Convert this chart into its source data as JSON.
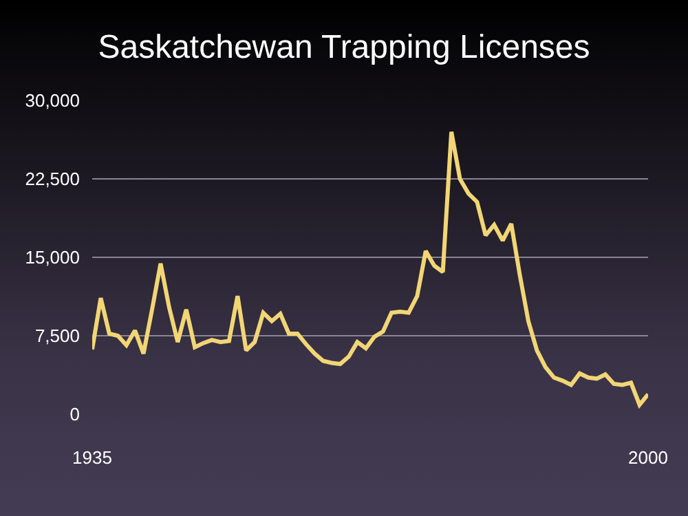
{
  "chart_data": {
    "type": "line",
    "title": "Saskatchewan Trapping Licenses",
    "x": [
      1935,
      1936,
      1937,
      1938,
      1939,
      1940,
      1941,
      1942,
      1943,
      1944,
      1945,
      1946,
      1947,
      1948,
      1949,
      1950,
      1951,
      1952,
      1953,
      1954,
      1955,
      1956,
      1957,
      1958,
      1959,
      1960,
      1961,
      1962,
      1963,
      1964,
      1965,
      1966,
      1967,
      1968,
      1969,
      1970,
      1971,
      1972,
      1973,
      1974,
      1975,
      1976,
      1977,
      1978,
      1979,
      1980,
      1981,
      1982,
      1983,
      1984,
      1985,
      1986,
      1987,
      1988,
      1989,
      1990,
      1991,
      1992,
      1993,
      1994,
      1995,
      1996,
      1997,
      1998,
      1999,
      2000
    ],
    "series": [
      {
        "color": "#f2d675",
        "values": [
          6200,
          11100,
          7700,
          7500,
          6600,
          8000,
          5800,
          10000,
          14400,
          10200,
          6900,
          10000,
          6400,
          6800,
          7100,
          6900,
          7000,
          11300,
          6100,
          6900,
          9700,
          8900,
          9600,
          7700,
          7700,
          6700,
          5800,
          5100,
          4900,
          4800,
          5500,
          6900,
          6300,
          7400,
          7900,
          9700,
          9800,
          9700,
          11300,
          15600,
          14200,
          13600,
          27000,
          22500,
          21100,
          20300,
          17100,
          18100,
          16600,
          18200,
          13300,
          8900,
          6100,
          4500,
          3500,
          3200,
          2800,
          3900,
          3500,
          3400,
          3800,
          2900,
          2800,
          3000,
          900,
          1900
        ]
      }
    ],
    "xlim": [
      1935,
      2000
    ],
    "xticks": [
      1935,
      2000
    ],
    "ylim": [
      0,
      30000
    ],
    "yticks": [
      {
        "value": 0,
        "label": "0"
      },
      {
        "value": 7500,
        "label": "7,500"
      },
      {
        "value": 15000,
        "label": "15,000"
      },
      {
        "value": 22500,
        "label": "22,500"
      },
      {
        "value": 30000,
        "label": "30,000"
      }
    ],
    "grid": "y",
    "marker": "none",
    "line_style": "solid"
  }
}
